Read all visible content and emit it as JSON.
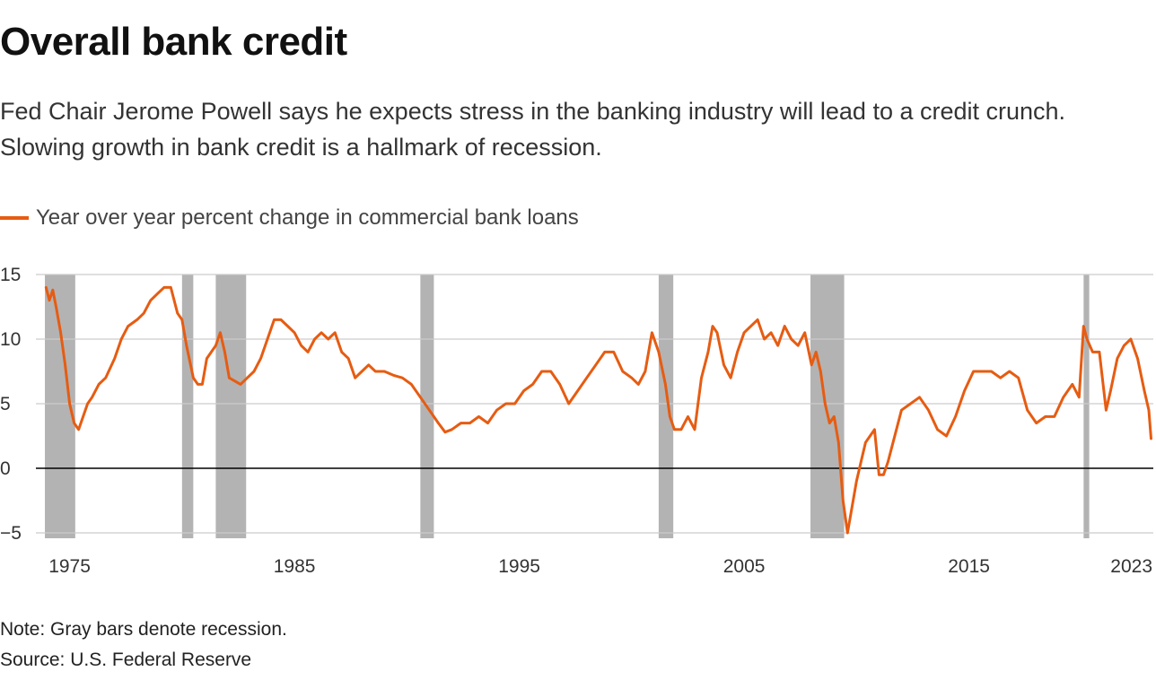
{
  "header": {
    "title": "Overall bank credit",
    "subtitle": "Fed Chair Jerome Powell says he expects stress in the banking industry will lead to a credit crunch. Slowing growth in bank credit is a hallmark of recession."
  },
  "footer": {
    "note": "Note: Gray bars denote recession.",
    "source": "Source: U.S. Federal Reserve"
  },
  "colors": {
    "line": "#e65c12",
    "recession": "#b3b3b3",
    "grid": "#cccccc",
    "zero": "#000000"
  },
  "chart_data": {
    "type": "line",
    "title": "Overall bank credit",
    "xlabel": "",
    "ylabel": "",
    "xlim": [
      1973.5,
      2023.2
    ],
    "ylim": [
      -5,
      15
    ],
    "yticks": [
      15,
      10,
      5,
      0,
      -5
    ],
    "ytick_labels": [
      "15",
      "10",
      "5",
      "0",
      "−5"
    ],
    "xticks": [
      1975,
      1985,
      1995,
      2005,
      2015,
      2023
    ],
    "xtick_labels": [
      "1975",
      "1985",
      "1995",
      "2005",
      "2015",
      "2023"
    ],
    "grid": true,
    "legend": {
      "position": "top-left"
    },
    "recessions": [
      {
        "start": 1973.9,
        "end": 1975.25
      },
      {
        "start": 1980.0,
        "end": 1980.5
      },
      {
        "start": 1981.5,
        "end": 1982.85
      },
      {
        "start": 1990.6,
        "end": 1991.2
      },
      {
        "start": 2001.2,
        "end": 2001.85
      },
      {
        "start": 2007.95,
        "end": 2009.45
      },
      {
        "start": 2020.1,
        "end": 2020.35
      }
    ],
    "series": [
      {
        "name": "Year over year percent change in commercial bank loans",
        "x": [
          1973.95,
          1974.1,
          1974.25,
          1974.4,
          1974.6,
          1974.8,
          1975.0,
          1975.2,
          1975.4,
          1975.6,
          1975.8,
          1976.0,
          1976.3,
          1976.6,
          1977.0,
          1977.3,
          1977.6,
          1978.0,
          1978.3,
          1978.6,
          1978.9,
          1979.2,
          1979.5,
          1979.8,
          1980.0,
          1980.2,
          1980.5,
          1980.7,
          1980.9,
          1981.1,
          1981.3,
          1981.5,
          1981.7,
          1981.9,
          1982.1,
          1982.3,
          1982.6,
          1982.9,
          1983.2,
          1983.5,
          1983.8,
          1984.1,
          1984.4,
          1984.7,
          1985.0,
          1985.3,
          1985.6,
          1985.9,
          1986.2,
          1986.5,
          1986.8,
          1987.1,
          1987.4,
          1987.7,
          1988.0,
          1988.3,
          1988.6,
          1989.0,
          1989.4,
          1989.8,
          1990.2,
          1990.6,
          1991.0,
          1991.4,
          1991.7,
          1992.0,
          1992.4,
          1992.8,
          1993.2,
          1993.6,
          1994.0,
          1994.4,
          1994.8,
          1995.2,
          1995.6,
          1996.0,
          1996.4,
          1996.8,
          1997.2,
          1997.6,
          1998.0,
          1998.4,
          1998.8,
          1999.2,
          1999.6,
          2000.0,
          2000.3,
          2000.6,
          2000.9,
          2001.2,
          2001.5,
          2001.7,
          2001.9,
          2002.2,
          2002.5,
          2002.8,
          2003.1,
          2003.4,
          2003.6,
          2003.8,
          2004.1,
          2004.4,
          2004.7,
          2005.0,
          2005.3,
          2005.6,
          2005.9,
          2006.2,
          2006.5,
          2006.8,
          2007.1,
          2007.4,
          2007.7,
          2008.0,
          2008.2,
          2008.4,
          2008.6,
          2008.8,
          2009.0,
          2009.2,
          2009.4,
          2009.6,
          2009.8,
          2010.0,
          2010.2,
          2010.4,
          2010.6,
          2010.8,
          2011.0,
          2011.2,
          2011.4,
          2011.7,
          2012.0,
          2012.4,
          2012.8,
          2013.2,
          2013.6,
          2014.0,
          2014.4,
          2014.8,
          2015.2,
          2015.6,
          2016.0,
          2016.4,
          2016.8,
          2017.2,
          2017.6,
          2018.0,
          2018.4,
          2018.8,
          2019.2,
          2019.6,
          2019.9,
          2020.1,
          2020.25,
          2020.5,
          2020.8,
          2021.1,
          2021.3,
          2021.6,
          2021.9,
          2022.2,
          2022.5,
          2022.8,
          2023.0,
          2023.1
        ],
        "values": [
          14.0,
          13.0,
          13.8,
          12.5,
          10.5,
          8.0,
          5.0,
          3.5,
          3.0,
          4.0,
          5.0,
          5.5,
          6.5,
          7.0,
          8.5,
          10.0,
          11.0,
          11.5,
          12.0,
          13.0,
          13.5,
          14.0,
          14.0,
          12.0,
          11.5,
          9.5,
          7.0,
          6.5,
          6.5,
          8.5,
          9.0,
          9.5,
          10.5,
          9.0,
          7.0,
          6.8,
          6.5,
          7.0,
          7.5,
          8.5,
          10.0,
          11.5,
          11.5,
          11.0,
          10.5,
          9.5,
          9.0,
          10.0,
          10.5,
          10.0,
          10.5,
          9.0,
          8.5,
          7.0,
          7.5,
          8.0,
          7.5,
          7.5,
          7.2,
          7.0,
          6.5,
          5.5,
          4.5,
          3.5,
          2.8,
          3.0,
          3.5,
          3.5,
          4.0,
          3.5,
          4.5,
          5.0,
          5.0,
          6.0,
          6.5,
          7.5,
          7.5,
          6.5,
          5.0,
          6.0,
          7.0,
          8.0,
          9.0,
          9.0,
          7.5,
          7.0,
          6.5,
          7.5,
          10.5,
          9.0,
          6.5,
          4.0,
          3.0,
          3.0,
          4.0,
          3.0,
          7.0,
          9.0,
          11.0,
          10.5,
          8.0,
          7.0,
          9.0,
          10.5,
          11.0,
          11.5,
          10.0,
          10.5,
          9.5,
          11.0,
          10.0,
          9.5,
          10.5,
          8.0,
          9.0,
          7.5,
          5.0,
          3.5,
          4.0,
          2.0,
          -2.5,
          -5.0,
          -3.0,
          -1.0,
          0.5,
          2.0,
          2.5,
          3.0,
          -0.5,
          -0.5,
          0.5,
          2.5,
          4.5,
          5.0,
          5.5,
          4.5,
          3.0,
          2.5,
          4.0,
          6.0,
          7.5,
          7.5,
          7.5,
          7.0,
          7.5,
          7.0,
          4.5,
          3.5,
          4.0,
          4.0,
          5.5,
          6.5,
          5.5,
          11.0,
          10.0,
          9.0,
          9.0,
          4.5,
          6.0,
          8.5,
          9.5,
          10.0,
          8.5,
          6.0,
          4.5,
          2.3
        ]
      }
    ]
  }
}
